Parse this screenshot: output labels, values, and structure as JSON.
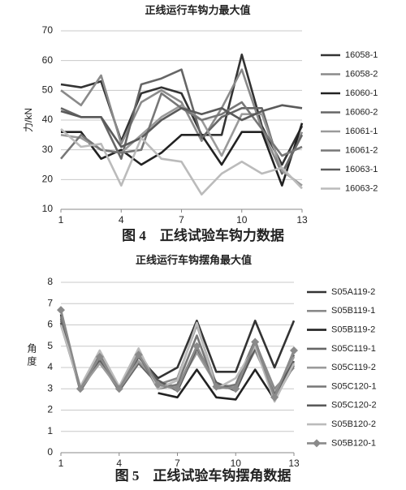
{
  "chart_data": [
    {
      "type": "line",
      "title": "正线运行车钩力最大值",
      "caption": "图 4　正线试验车钩力数据",
      "ylabel": "力/kN",
      "ylabel_orientation": "rotated",
      "x": [
        1,
        2,
        3,
        4,
        5,
        6,
        7,
        8,
        9,
        10,
        11,
        12,
        13
      ],
      "xlim": [
        1,
        13
      ],
      "xticks": [
        1,
        4,
        7,
        10,
        13
      ],
      "ylim": [
        10,
        70
      ],
      "yticks": [
        10,
        20,
        30,
        40,
        50,
        60,
        70
      ],
      "grid": true,
      "legend": "right",
      "series": [
        {
          "name": "16058-1",
          "color": "#333333",
          "values": [
            52,
            51,
            53,
            33,
            49,
            51,
            49,
            35,
            35,
            62,
            38,
            25,
            38
          ]
        },
        {
          "name": "16058-2",
          "color": "#8a8a8a",
          "values": [
            50,
            45,
            55,
            32,
            46,
            50,
            46,
            33,
            44,
            57,
            37,
            22,
            36
          ]
        },
        {
          "name": "16060-1",
          "color": "#222222",
          "values": [
            36,
            36,
            27,
            30,
            25,
            29,
            35,
            35,
            25,
            36,
            36,
            18,
            39
          ]
        },
        {
          "name": "16060-2",
          "color": "#666666",
          "values": [
            44,
            41,
            41,
            27,
            52,
            54,
            57,
            34,
            41,
            44,
            44,
            22,
            35
          ]
        },
        {
          "name": "16061-1",
          "color": "#9a9a9a",
          "values": [
            35,
            34,
            30,
            29,
            35,
            41,
            45,
            40,
            28,
            42,
            42,
            23,
            18
          ]
        },
        {
          "name": "16061-2",
          "color": "#777777",
          "values": [
            27,
            35,
            30,
            29,
            30,
            49,
            44,
            40,
            42,
            46,
            37,
            28,
            31
          ]
        },
        {
          "name": "16063-1",
          "color": "#5a5a5a",
          "values": [
            43,
            41,
            41,
            31,
            34,
            40,
            44,
            42,
            44,
            40,
            43,
            45,
            44
          ]
        },
        {
          "name": "16063-2",
          "color": "#bbbbbb",
          "values": [
            37,
            31,
            32,
            18,
            34,
            27,
            26,
            15,
            22,
            26,
            22,
            24,
            17
          ]
        }
      ]
    },
    {
      "type": "line",
      "title": "正线运行车钩摆角最大值",
      "caption": "图 5　正线试验车钩摆角数据",
      "ylabel": "角度",
      "ylabel_orientation": "stacked",
      "x": [
        1,
        2,
        3,
        4,
        5,
        6,
        7,
        8,
        9,
        10,
        11,
        12,
        13
      ],
      "xlim": [
        1,
        13
      ],
      "xticks": [
        1,
        4,
        7,
        10,
        13
      ],
      "ylim": [
        0,
        8
      ],
      "yticks": [
        0,
        1,
        2,
        3,
        4,
        5,
        6,
        7,
        8
      ],
      "grid": true,
      "legend": "right",
      "series": [
        {
          "name": "S05A119-2",
          "color": "#333333",
          "values": [
            6.5,
            3.0,
            4.5,
            3.0,
            4.5,
            3.5,
            4.0,
            6.2,
            3.8,
            3.8,
            6.2,
            4.0,
            6.2
          ]
        },
        {
          "name": "S05B119-1",
          "color": "#8a8a8a",
          "values": [
            6.2,
            3.0,
            4.7,
            3.0,
            4.8,
            3.2,
            3.5,
            6.0,
            3.2,
            3.0,
            5.2,
            3.0,
            4.0
          ]
        },
        {
          "name": "S05B119-2",
          "color": "#222222",
          "values": [
            null,
            null,
            null,
            null,
            null,
            2.8,
            2.6,
            3.9,
            2.6,
            2.5,
            3.9,
            2.5,
            4.8
          ]
        },
        {
          "name": "S05C119-1",
          "color": "#666666",
          "values": [
            6.3,
            2.9,
            4.3,
            2.9,
            4.2,
            3.2,
            3.0,
            5.0,
            3.1,
            3.0,
            5.0,
            2.6,
            4.6
          ]
        },
        {
          "name": "S05C119-2",
          "color": "#9a9a9a",
          "values": [
            6.0,
            3.0,
            4.2,
            3.0,
            4.3,
            3.3,
            3.1,
            4.7,
            3.2,
            3.1,
            4.8,
            2.8,
            4.5
          ]
        },
        {
          "name": "S05C120-1",
          "color": "#777777",
          "values": [
            6.4,
            3.0,
            4.6,
            3.0,
            4.6,
            3.0,
            3.2,
            5.5,
            3.0,
            3.2,
            5.3,
            2.5,
            4.1
          ]
        },
        {
          "name": "S05C120-2",
          "color": "#5a5a5a",
          "values": [
            6.1,
            3.1,
            4.4,
            3.1,
            4.5,
            3.4,
            2.9,
            4.9,
            3.3,
            2.9,
            4.9,
            2.7,
            4.3
          ]
        },
        {
          "name": "S05B120-2",
          "color": "#bbbbbb",
          "values": [
            6.0,
            3.1,
            4.8,
            3.1,
            4.9,
            3.0,
            3.4,
            6.1,
            3.0,
            3.5,
            5.0,
            2.4,
            4.2
          ]
        },
        {
          "name": "S05B120-1",
          "color": "#8a8a8a",
          "marker": "diamond",
          "values": [
            6.7,
            3.0,
            4.5,
            3.0,
            4.6,
            3.2,
            3.0,
            5.0,
            3.1,
            3.0,
            5.2,
            2.6,
            4.8
          ]
        }
      ]
    }
  ]
}
